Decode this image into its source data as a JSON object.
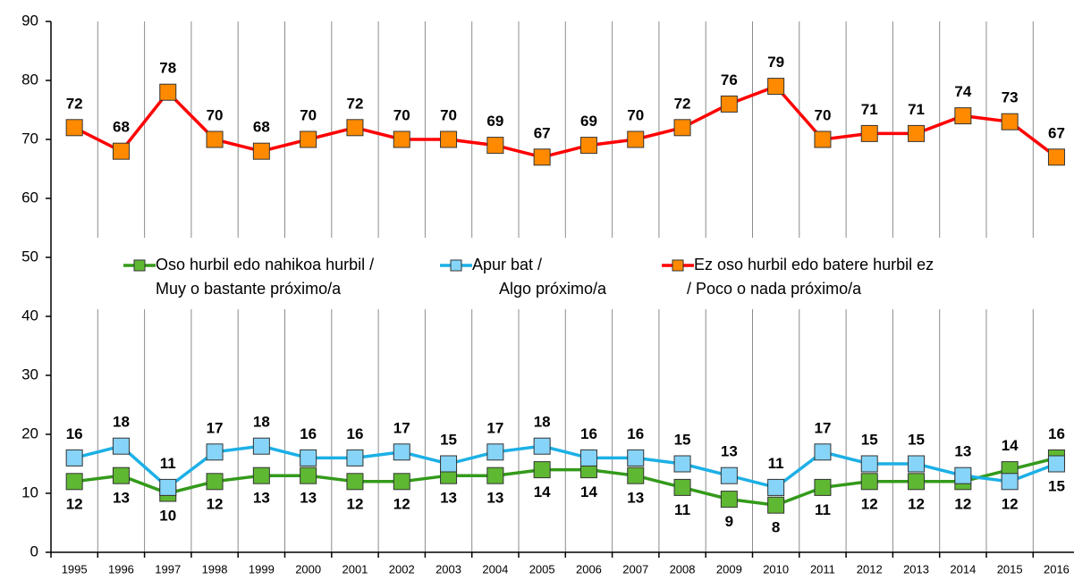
{
  "chart_data": {
    "type": "line",
    "categories": [
      "1995",
      "1996",
      "1997",
      "1998",
      "1999",
      "2000",
      "2001",
      "2002",
      "2003",
      "2004",
      "2005",
      "2006",
      "2007",
      "2008",
      "2009",
      "2010",
      "2011",
      "2012",
      "2013",
      "2014",
      "2015",
      "2016"
    ],
    "series": [
      {
        "name": [
          "Oso hurbil edo nahikoa hurbil /",
          "Muy o bastante próximo/a"
        ],
        "color": "#339a1a",
        "marker_color": "#5fb832",
        "values": [
          12,
          13,
          10,
          12,
          13,
          13,
          12,
          12,
          13,
          13,
          14,
          14,
          13,
          11,
          9,
          8,
          11,
          12,
          12,
          12,
          14,
          16
        ]
      },
      {
        "name": [
          "Apur bat /",
          "Algo próximo/a"
        ],
        "color": "#1cb0e6",
        "marker_color": "#86d4f7",
        "values": [
          16,
          18,
          11,
          17,
          18,
          16,
          16,
          17,
          15,
          17,
          18,
          16,
          16,
          15,
          13,
          11,
          17,
          15,
          15,
          13,
          12,
          15
        ]
      },
      {
        "name": [
          "Ez oso hurbil edo batere hurbil ez",
          "/ Poco o nada próximo/a"
        ],
        "color": "#ff0000",
        "marker_color": "#ff8a00",
        "values": [
          72,
          68,
          78,
          70,
          68,
          70,
          72,
          70,
          70,
          69,
          67,
          69,
          70,
          72,
          76,
          79,
          70,
          71,
          71,
          74,
          73,
          67
        ]
      }
    ],
    "ylim": [
      0,
      90
    ],
    "yticks": [
      0,
      10,
      20,
      30,
      40,
      50,
      60,
      70,
      80,
      90
    ]
  }
}
